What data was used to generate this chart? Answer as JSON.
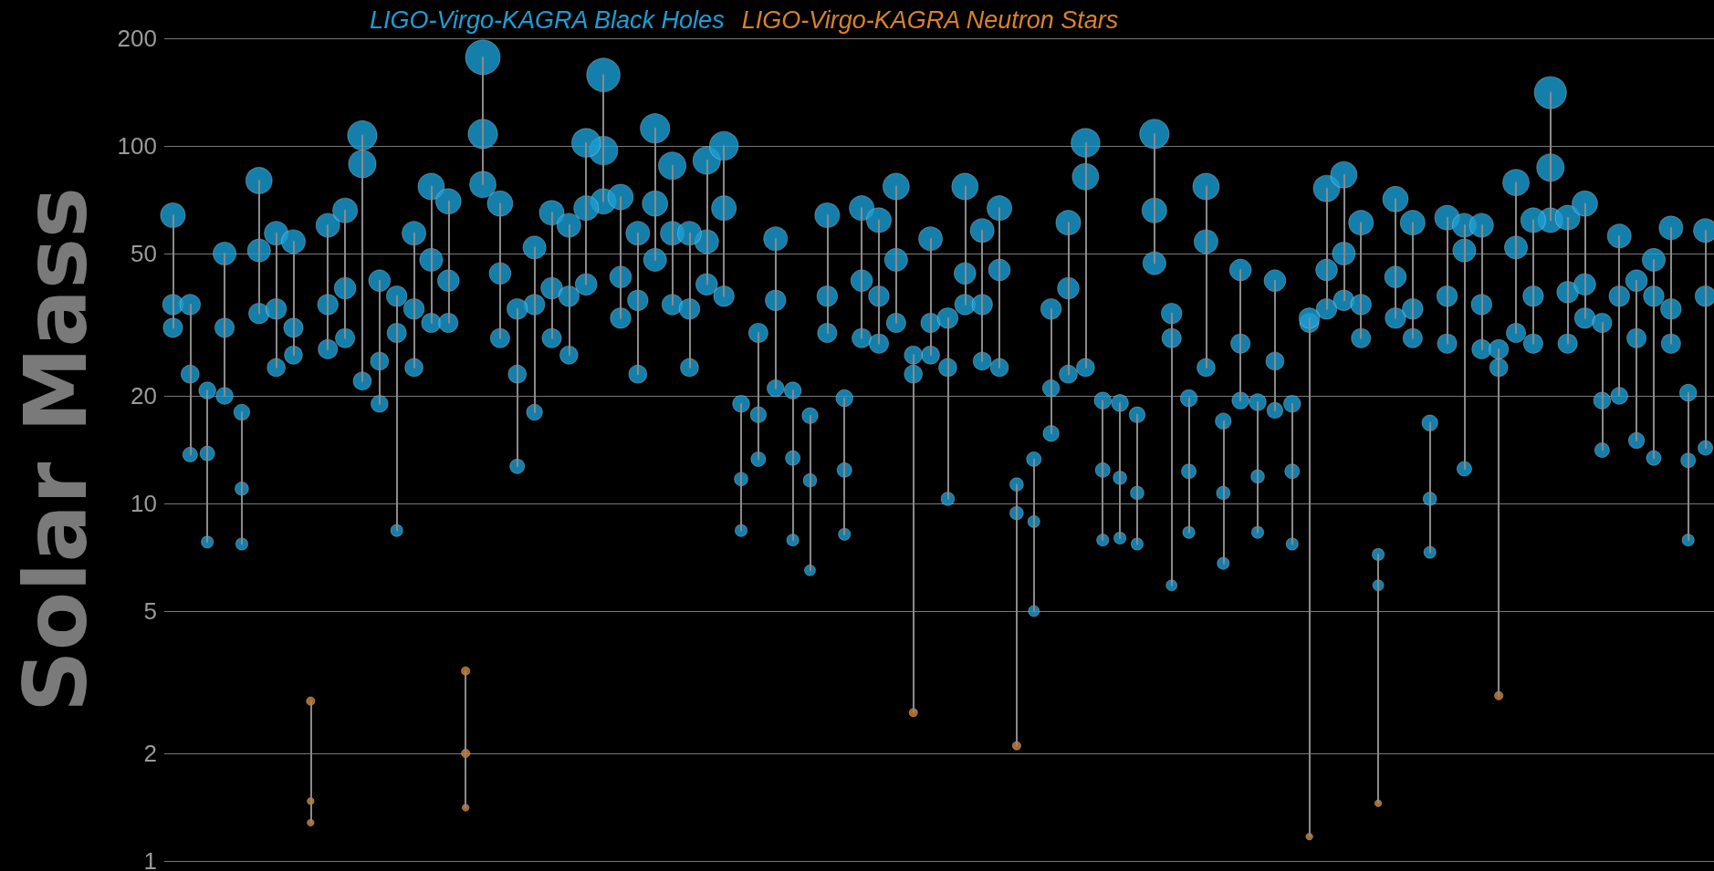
{
  "chart_data": {
    "type": "bubble",
    "ylabel": "Solar Mass",
    "log": "y",
    "ylim": [
      1,
      200
    ],
    "yticks": [
      1,
      2,
      5,
      10,
      20,
      50,
      100,
      200
    ],
    "tick_labels": "y",
    "grid": "y",
    "marker": "circle",
    "categories": [
      null,
      null,
      null,
      null,
      null,
      null,
      null,
      null,
      null,
      null,
      null,
      null,
      null,
      null,
      null,
      null,
      null,
      null,
      null,
      null,
      null,
      null,
      null,
      null,
      null,
      null,
      null,
      null,
      null,
      null,
      null,
      null,
      null,
      null,
      null,
      null,
      null,
      null,
      null,
      null,
      null,
      null,
      null,
      null,
      null,
      null,
      null,
      null,
      null,
      null,
      null,
      null,
      null,
      null,
      null,
      null,
      null,
      null,
      null,
      null,
      null,
      null,
      null,
      null,
      null,
      null,
      null,
      null,
      null,
      null,
      null,
      null,
      null,
      null,
      null,
      null,
      null,
      null,
      null,
      null,
      null,
      null,
      null,
      null,
      null,
      null,
      null,
      null,
      null,
      null
    ],
    "series": [
      {
        "name": "LIGO-Virgo-KAGRA Black Holes",
        "color": "#1a9fd6",
        "values": [
          31,
          13.7,
          7.8,
          20,
          7.7,
          34,
          24,
          26,
          null,
          27,
          29,
          22,
          19,
          8.4,
          24,
          32,
          32,
          null,
          78,
          29,
          12.7,
          18,
          29,
          26,
          41,
          70,
          33,
          23,
          48,
          36,
          24,
          41,
          38,
          8.4,
          13.3,
          21,
          7.9,
          6.5,
          30,
          8.2,
          29,
          28,
          32,
          null,
          26,
          10.3,
          36,
          25,
          24,
          null,
          5,
          15.7,
          23,
          24,
          7.9,
          8,
          7.7,
          47,
          5.9,
          8.3,
          24,
          6.8,
          19.4,
          8.3,
          18.2,
          7.7,
          null,
          35,
          37,
          29,
          null,
          33,
          29,
          7.3,
          28,
          12.5,
          27,
          null,
          30,
          28,
          62,
          28,
          33,
          14.1,
          20,
          15,
          13.4,
          28,
          7.9,
          14.3
        ],
        "sizes": [
          0.31,
          0.18,
          0.12,
          0.24,
          0.12,
          0.35,
          0.27,
          0.27,
          null,
          0.31,
          0.31,
          0.27,
          0.24,
          0.12,
          0.27,
          0.31,
          0.31,
          null,
          0.58,
          0.31,
          0.18,
          0.21,
          0.31,
          0.27,
          0.39,
          0.54,
          0.35,
          0.27,
          0.44,
          0.35,
          0.27,
          0.39,
          0.35,
          0.12,
          0.18,
          0.24,
          0.12,
          0.1,
          0.31,
          0.12,
          0.31,
          0.31,
          0.31,
          null,
          0.27,
          0.15,
          0.35,
          0.27,
          0.27,
          null,
          0.1,
          0.21,
          0.27,
          0.27,
          0.12,
          0.12,
          0.12,
          0.44,
          0.1,
          0.12,
          0.27,
          0.12,
          0.24,
          0.12,
          0.21,
          0.12,
          null,
          0.35,
          0.35,
          0.31,
          null,
          0.35,
          0.31,
          0.12,
          0.31,
          0.18,
          0.31,
          null,
          0.31,
          0.31,
          0.51,
          0.31,
          0.35,
          0.18,
          0.24,
          0.21,
          0.18,
          0.31,
          0.12,
          0.18
        ]
      },
      {
        "color": "#1a9fd6",
        "values": [
          36,
          23,
          13.8,
          31,
          11,
          51,
          35,
          31,
          null,
          36,
          40,
          89,
          25,
          30,
          35,
          48,
          42,
          null,
          108,
          44,
          23,
          36,
          40,
          38,
          67,
          97,
          43,
          37,
          69,
          57,
          35,
          54,
          67,
          11.7,
          17.7,
          37,
          13.4,
          11.6,
          38,
          12.4,
          42,
          38,
          48,
          23,
          32,
          24,
          44,
          36,
          45,
          9.4,
          8.9,
          21,
          40,
          82,
          12.4,
          11.8,
          10.7,
          66,
          29,
          12.3,
          54,
          10.7,
          28,
          11.9,
          25,
          12.3,
          32,
          45,
          50,
          36,
          5.9,
          43,
          35,
          10.3,
          38,
          51,
          36,
          24,
          52,
          38,
          87,
          39,
          41,
          19.4,
          38,
          29,
          38,
          35,
          13.2,
          38
        ],
        "sizes": [
          0.35,
          0.27,
          0.18,
          0.31,
          0.15,
          0.44,
          0.35,
          0.31,
          null,
          0.35,
          0.39,
          0.63,
          0.27,
          0.31,
          0.35,
          0.44,
          0.39,
          null,
          0.72,
          0.39,
          0.27,
          0.35,
          0.39,
          0.35,
          0.51,
          0.69,
          0.39,
          0.35,
          0.54,
          0.47,
          0.35,
          0.47,
          0.51,
          0.15,
          0.21,
          0.35,
          0.18,
          0.15,
          0.35,
          0.18,
          0.39,
          0.35,
          0.44,
          0.27,
          0.31,
          0.27,
          0.39,
          0.35,
          0.39,
          0.15,
          0.12,
          0.24,
          0.39,
          0.58,
          0.18,
          0.15,
          0.15,
          0.51,
          0.31,
          0.18,
          0.47,
          0.15,
          0.31,
          0.15,
          0.27,
          0.18,
          0.31,
          0.39,
          0.44,
          0.35,
          0.1,
          0.39,
          0.35,
          0.15,
          0.35,
          0.44,
          0.35,
          0.27,
          0.44,
          0.35,
          0.63,
          0.39,
          0.39,
          0.24,
          0.35,
          0.31,
          0.35,
          0.35,
          0.18,
          0.35
        ]
      },
      {
        "color": "#1a9fd6",
        "values": [
          64,
          36,
          20.7,
          50,
          18,
          80,
          57,
          54,
          null,
          60,
          66,
          107,
          42,
          38,
          57,
          77,
          70,
          null,
          177,
          69,
          35,
          52,
          65,
          60,
          102,
          158,
          72,
          57,
          112,
          88,
          57,
          91,
          100,
          19,
          30,
          55,
          20.7,
          17.6,
          64,
          19.7,
          67,
          62,
          77,
          26,
          55,
          33,
          77,
          58,
          67,
          11.3,
          13.3,
          35,
          61,
          102,
          19.4,
          19.1,
          17.7,
          108,
          34,
          19.7,
          77,
          17,
          45,
          19.2,
          42,
          19,
          33,
          76,
          83,
          61,
          7.2,
          71,
          61,
          16.8,
          63,
          60,
          60,
          27,
          79,
          62,
          141,
          63,
          69,
          32,
          56,
          42,
          48,
          59,
          20.4,
          58
        ],
        "sizes": [
          0.51,
          0.35,
          0.24,
          0.44,
          0.21,
          0.58,
          0.47,
          0.47,
          null,
          0.47,
          0.51,
          0.72,
          0.39,
          0.35,
          0.47,
          0.58,
          0.54,
          null,
          1,
          0.54,
          0.35,
          0.44,
          0.51,
          0.47,
          0.69,
          0.93,
          0.54,
          0.47,
          0.72,
          0.63,
          0.47,
          0.63,
          0.69,
          0.24,
          0.31,
          0.47,
          0.24,
          0.21,
          0.51,
          0.24,
          0.51,
          0.51,
          0.58,
          0.27,
          0.47,
          0.35,
          0.58,
          0.47,
          0.51,
          0.15,
          0.18,
          0.35,
          0.51,
          0.69,
          0.24,
          0.24,
          0.21,
          0.72,
          0.35,
          0.24,
          0.58,
          0.21,
          0.39,
          0.24,
          0.39,
          0.24,
          0.35,
          0.58,
          0.58,
          0.51,
          0.12,
          0.54,
          0.51,
          0.21,
          0.51,
          0.47,
          0.47,
          0.31,
          0.58,
          0.51,
          0.86,
          0.51,
          0.54,
          0.31,
          0.47,
          0.39,
          0.44,
          0.47,
          0.24,
          0.47
        ]
      },
      {
        "name": "LIGO-Virgo-KAGRA Neutron Stars",
        "color": "#d9822b",
        "values": [
          null,
          null,
          null,
          null,
          null,
          null,
          null,
          null,
          1.28,
          null,
          null,
          null,
          null,
          null,
          null,
          null,
          null,
          1.41,
          null,
          null,
          null,
          null,
          null,
          null,
          null,
          null,
          null,
          null,
          null,
          null,
          null,
          null,
          null,
          null,
          null,
          null,
          null,
          null,
          null,
          null,
          null,
          null,
          null,
          2.6,
          null,
          null,
          null,
          null,
          null,
          2.1,
          null,
          null,
          null,
          null,
          null,
          null,
          null,
          null,
          null,
          null,
          null,
          null,
          null,
          null,
          null,
          null,
          1.17,
          null,
          null,
          null,
          1.45,
          null,
          null,
          null,
          null,
          null,
          null,
          2.9,
          null,
          null,
          null,
          null,
          null,
          null,
          null,
          null,
          null,
          null,
          null,
          null
        ],
        "sizes": [
          null,
          null,
          null,
          null,
          null,
          null,
          null,
          null,
          0.04,
          null,
          null,
          null,
          null,
          null,
          null,
          null,
          null,
          0.04,
          null,
          null,
          null,
          null,
          null,
          null,
          null,
          null,
          null,
          null,
          null,
          null,
          null,
          null,
          null,
          null,
          null,
          null,
          null,
          null,
          null,
          null,
          null,
          null,
          null,
          0.06,
          null,
          null,
          null,
          null,
          null,
          0.06,
          null,
          null,
          null,
          null,
          null,
          null,
          null,
          null,
          null,
          null,
          null,
          null,
          null,
          null,
          null,
          null,
          0.04,
          null,
          null,
          null,
          0.04,
          null,
          null,
          null,
          null,
          null,
          null,
          0.06,
          null,
          null,
          null,
          null,
          null,
          null,
          null,
          null,
          null,
          null,
          null,
          null
        ]
      },
      {
        "color": "#d9822b",
        "values": [
          null,
          null,
          null,
          null,
          null,
          null,
          null,
          null,
          1.47,
          null,
          null,
          null,
          null,
          null,
          null,
          null,
          null,
          2,
          null,
          null,
          null,
          null,
          null,
          null,
          null,
          null,
          null,
          null,
          null,
          null,
          null,
          null,
          null,
          null,
          null,
          null,
          null,
          null,
          null,
          null,
          null,
          null,
          null,
          null,
          null,
          null,
          null,
          null,
          null,
          null,
          null,
          null,
          null,
          null,
          null,
          null,
          null,
          null,
          null,
          null,
          null,
          null,
          null,
          null,
          null,
          null,
          null,
          null,
          null,
          null,
          null,
          null,
          null,
          null,
          null,
          null,
          null,
          null,
          null,
          null,
          null,
          null,
          null,
          null,
          null,
          null,
          null,
          null,
          null,
          null
        ],
        "sizes": [
          null,
          null,
          null,
          null,
          null,
          null,
          null,
          null,
          0.04,
          null,
          null,
          null,
          null,
          null,
          null,
          null,
          null,
          0.06,
          null,
          null,
          null,
          null,
          null,
          null,
          null,
          null,
          null,
          null,
          null,
          null,
          null,
          null,
          null,
          null,
          null,
          null,
          null,
          null,
          null,
          null,
          null,
          null,
          null,
          null,
          null,
          null,
          null,
          null,
          null,
          null,
          null,
          null,
          null,
          null,
          null,
          null,
          null,
          null,
          null,
          null,
          null,
          null,
          null,
          null,
          null,
          null,
          null,
          null,
          null,
          null,
          null,
          null,
          null,
          null,
          null,
          null,
          null,
          null,
          null,
          null,
          null,
          null,
          null,
          null,
          null,
          null,
          null,
          null,
          null,
          null
        ]
      },
      {
        "color": "#d9822b",
        "values": [
          null,
          null,
          null,
          null,
          null,
          null,
          null,
          null,
          2.8,
          null,
          null,
          null,
          null,
          null,
          null,
          null,
          null,
          3.4,
          null,
          null,
          null,
          null,
          null,
          null,
          null,
          null,
          null,
          null,
          null,
          null,
          null,
          null,
          null,
          null,
          null,
          null,
          null,
          null,
          null,
          null,
          null,
          null,
          null,
          null,
          null,
          null,
          null,
          null,
          null,
          null,
          null,
          null,
          null,
          null,
          null,
          null,
          null,
          null,
          null,
          null,
          null,
          null,
          null,
          null,
          null,
          null,
          null,
          null,
          null,
          null,
          null,
          null,
          null,
          null,
          null,
          null,
          null,
          null,
          null,
          null,
          null,
          null,
          null,
          null,
          null,
          null,
          null,
          null,
          null,
          null
        ],
        "sizes": [
          null,
          null,
          null,
          null,
          null,
          null,
          null,
          null,
          0.06,
          null,
          null,
          null,
          null,
          null,
          null,
          null,
          null,
          0.06,
          null,
          null,
          null,
          null,
          null,
          null,
          null,
          null,
          null,
          null,
          null,
          null,
          null,
          null,
          null,
          null,
          null,
          null,
          null,
          null,
          null,
          null,
          null,
          null,
          null,
          null,
          null,
          null,
          null,
          null,
          null,
          null,
          null,
          null,
          null,
          null,
          null,
          null,
          null,
          null,
          null,
          null,
          null,
          null,
          null,
          null,
          null,
          null,
          null,
          null,
          null,
          null,
          null,
          null,
          null,
          null,
          null,
          null,
          null,
          null,
          null,
          null,
          null,
          null,
          null,
          null,
          null,
          null,
          null,
          null,
          null,
          null
        ]
      }
    ]
  }
}
